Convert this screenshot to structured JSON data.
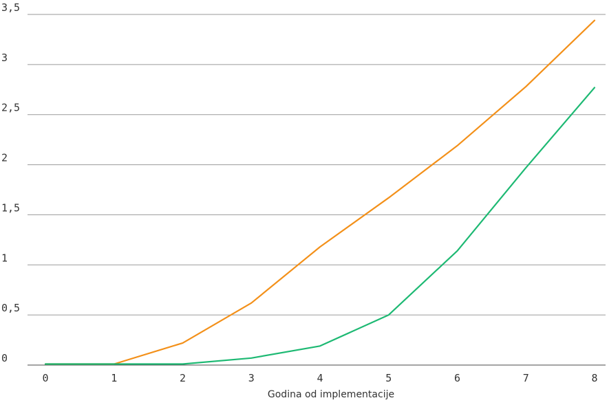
{
  "chart_data": {
    "type": "line",
    "title": "",
    "xlabel": "Godina od implementacije",
    "ylabel": "",
    "x": [
      0,
      1,
      2,
      3,
      4,
      5,
      6,
      7,
      8
    ],
    "x_tick_labels": [
      "0",
      "1",
      "2",
      "3",
      "4",
      "5",
      "6",
      "7",
      "8"
    ],
    "y_ticks": [
      0,
      0.5,
      1,
      1.5,
      2,
      2.5,
      3,
      3.5
    ],
    "y_tick_labels": [
      "0",
      "0,5",
      "1",
      "1,5",
      "2",
      "2,5",
      "3",
      "3,5"
    ],
    "xlim": [
      0,
      8
    ],
    "ylim": [
      0,
      3.5
    ],
    "grid": "horizontal",
    "legend": "none",
    "series": [
      {
        "color": "#f39019",
        "values": [
          0.01,
          0.01,
          0.22,
          0.62,
          1.18,
          1.67,
          2.19,
          2.78,
          3.44
        ]
      },
      {
        "color": "#1db973",
        "values": [
          0.01,
          0.01,
          0.01,
          0.07,
          0.19,
          0.5,
          1.14,
          1.97,
          2.77
        ]
      }
    ]
  }
}
